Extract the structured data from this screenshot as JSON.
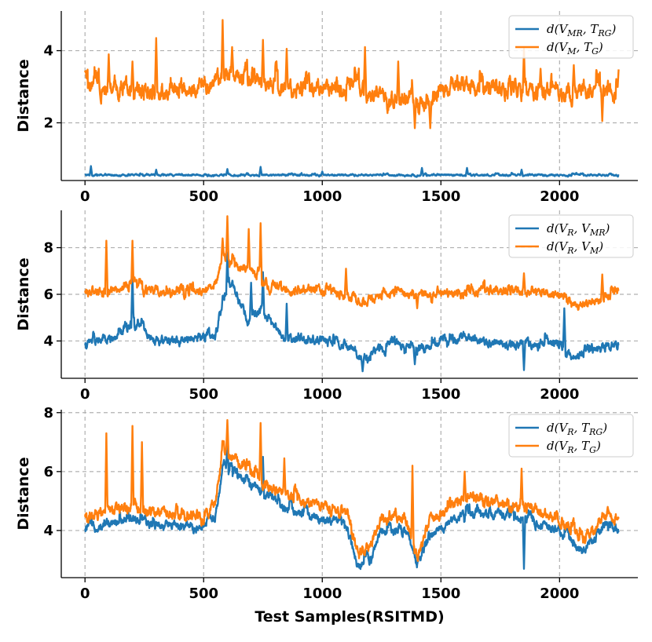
{
  "chart_data": [
    {
      "type": "line",
      "ylabel": "Distance",
      "xlabel": "",
      "xlim": [
        -100,
        2330
      ],
      "ylim": [
        0.4,
        5.1
      ],
      "xticks": [
        0,
        500,
        1000,
        1500,
        2000
      ],
      "xtick_labels": [
        "0",
        "500",
        "1000",
        "1500",
        "2000"
      ],
      "yticks": [
        2,
        4
      ],
      "ytick_labels": [
        "2",
        "4"
      ],
      "legend_position": "top-right",
      "n_points": 2250,
      "series": [
        {
          "name": "d(V_MR, T_RG)",
          "legend_main": "d(V",
          "legend_sub1": "MR",
          "legend_mid": ", T",
          "legend_sub2": "RG",
          "legend_end": ")",
          "color": "#1f77b4",
          "base": [
            [
              0,
              0.55
            ],
            [
              500,
              0.55
            ],
            [
              1000,
              0.55
            ],
            [
              1500,
              0.55
            ],
            [
              2000,
              0.55
            ],
            [
              2250,
              0.55
            ]
          ],
          "noise": 0.03,
          "spikes": [
            [
              25,
              0.8
            ],
            [
              300,
              0.7
            ],
            [
              600,
              0.72
            ],
            [
              740,
              0.78
            ],
            [
              1000,
              0.65
            ],
            [
              1420,
              0.75
            ],
            [
              1610,
              0.75
            ],
            [
              1840,
              0.7
            ]
          ]
        },
        {
          "name": "d(V_M, T_G)",
          "legend_main": "d(V",
          "legend_sub1": "M",
          "legend_mid": ", T",
          "legend_sub2": "G",
          "legend_end": ")",
          "color": "#ff7f0e",
          "base": [
            [
              0,
              3.0
            ],
            [
              200,
              2.9
            ],
            [
              400,
              2.95
            ],
            [
              550,
              3.1
            ],
            [
              620,
              3.4
            ],
            [
              700,
              3.2
            ],
            [
              800,
              3.0
            ],
            [
              1000,
              3.0
            ],
            [
              1150,
              2.95
            ],
            [
              1250,
              2.7
            ],
            [
              1400,
              2.6
            ],
            [
              1450,
              2.5
            ],
            [
              1500,
              2.9
            ],
            [
              1600,
              3.1
            ],
            [
              1800,
              2.9
            ],
            [
              2000,
              2.85
            ],
            [
              2250,
              3.0
            ]
          ],
          "noise": 0.28,
          "spikes": [
            [
              100,
              3.9
            ],
            [
              200,
              3.7
            ],
            [
              300,
              4.35
            ],
            [
              580,
              4.85
            ],
            [
              620,
              4.1
            ],
            [
              750,
              4.3
            ],
            [
              850,
              4.05
            ],
            [
              1180,
              4.1
            ],
            [
              1320,
              3.7
            ],
            [
              1390,
              1.85
            ],
            [
              1455,
              1.85
            ],
            [
              1850,
              4.05
            ],
            [
              1920,
              3.5
            ],
            [
              2060,
              3.6
            ],
            [
              2180,
              2.05
            ],
            [
              2250,
              3.6
            ]
          ]
        }
      ]
    },
    {
      "type": "line",
      "ylabel": "Distance",
      "xlabel": "",
      "xlim": [
        -100,
        2330
      ],
      "ylim": [
        2.4,
        9.6
      ],
      "xticks": [
        0,
        500,
        1000,
        1500,
        2000
      ],
      "xtick_labels": [
        "0",
        "500",
        "1000",
        "1500",
        "2000"
      ],
      "yticks": [
        4,
        6,
        8
      ],
      "ytick_labels": [
        "4",
        "6",
        "8"
      ],
      "legend_position": "top-right",
      "n_points": 2250,
      "series": [
        {
          "name": "d(V_R, V_MR)",
          "legend_main": "d(V",
          "legend_sub1": "R",
          "legend_mid": ", V",
          "legend_sub2": "MR",
          "legend_end": ")",
          "color": "#1f77b4",
          "base": [
            [
              0,
              3.9
            ],
            [
              150,
              4.2
            ],
            [
              200,
              4.8
            ],
            [
              300,
              4.0
            ],
            [
              550,
              4.2
            ],
            [
              580,
              5.8
            ],
            [
              620,
              6.5
            ],
            [
              680,
              5.0
            ],
            [
              750,
              5.3
            ],
            [
              850,
              4.0
            ],
            [
              1000,
              4.1
            ],
            [
              1100,
              3.8
            ],
            [
              1170,
              3.2
            ],
            [
              1300,
              4.0
            ],
            [
              1400,
              3.6
            ],
            [
              1600,
              4.2
            ],
            [
              1800,
              3.8
            ],
            [
              2000,
              4.0
            ],
            [
              2050,
              3.3
            ],
            [
              2150,
              3.6
            ],
            [
              2250,
              3.9
            ]
          ],
          "noise": 0.22,
          "spikes": [
            [
              200,
              6.95
            ],
            [
              600,
              7.8
            ],
            [
              700,
              6.5
            ],
            [
              750,
              6.95
            ],
            [
              850,
              5.6
            ],
            [
              1170,
              2.7
            ],
            [
              1390,
              3.0
            ],
            [
              1850,
              2.75
            ],
            [
              2020,
              5.4
            ]
          ]
        },
        {
          "name": "d(V_R, V_M)",
          "legend_main": "d(V",
          "legend_sub1": "R",
          "legend_mid": ", V",
          "legend_sub2": "M",
          "legend_end": ")",
          "color": "#ff7f0e",
          "base": [
            [
              0,
              6.1
            ],
            [
              200,
              6.3
            ],
            [
              400,
              6.0
            ],
            [
              550,
              6.3
            ],
            [
              580,
              7.7
            ],
            [
              620,
              7.3
            ],
            [
              700,
              7.0
            ],
            [
              800,
              6.2
            ],
            [
              1000,
              6.2
            ],
            [
              1100,
              6.0
            ],
            [
              1150,
              5.7
            ],
            [
              1300,
              6.0
            ],
            [
              1500,
              6.0
            ],
            [
              1700,
              6.2
            ],
            [
              1900,
              6.1
            ],
            [
              2000,
              5.9
            ],
            [
              2050,
              5.5
            ],
            [
              2150,
              5.7
            ],
            [
              2250,
              6.1
            ]
          ],
          "noise": 0.22,
          "spikes": [
            [
              90,
              8.3
            ],
            [
              200,
              8.3
            ],
            [
              580,
              8.4
            ],
            [
              600,
              9.35
            ],
            [
              690,
              8.8
            ],
            [
              740,
              9.05
            ],
            [
              1100,
              7.1
            ],
            [
              1400,
              5.4
            ],
            [
              1850,
              6.9
            ],
            [
              2180,
              6.85
            ]
          ]
        }
      ]
    },
    {
      "type": "line",
      "ylabel": "Distance",
      "xlabel": "Test Samples(RSITMD)",
      "xlim": [
        -100,
        2330
      ],
      "ylim": [
        2.4,
        8.1
      ],
      "xticks": [
        0,
        500,
        1000,
        1500,
        2000
      ],
      "xtick_labels": [
        "0",
        "500",
        "1000",
        "1500",
        "2000"
      ],
      "yticks": [
        4,
        6,
        8
      ],
      "ytick_labels": [
        "4",
        "6",
        "8"
      ],
      "legend_position": "top-right",
      "n_points": 2250,
      "series": [
        {
          "name": "d(V_R, T_RG)",
          "legend_main": "d(V",
          "legend_sub1": "R",
          "legend_mid": ", T",
          "legend_sub2": "RG",
          "legend_end": ")",
          "color": "#1f77b4",
          "base": [
            [
              0,
              4.0
            ],
            [
              100,
              4.3
            ],
            [
              200,
              4.4
            ],
            [
              300,
              4.2
            ],
            [
              500,
              4.1
            ],
            [
              550,
              4.5
            ],
            [
              580,
              6.2
            ],
            [
              650,
              5.8
            ],
            [
              750,
              5.2
            ],
            [
              900,
              4.6
            ],
            [
              1100,
              4.2
            ],
            [
              1150,
              2.9
            ],
            [
              1200,
              3.0
            ],
            [
              1250,
              4.0
            ],
            [
              1350,
              4.0
            ],
            [
              1400,
              2.8
            ],
            [
              1450,
              3.8
            ],
            [
              1600,
              4.6
            ],
            [
              1800,
              4.5
            ],
            [
              2000,
              4.0
            ],
            [
              2100,
              3.3
            ],
            [
              2200,
              4.2
            ],
            [
              2250,
              4.0
            ]
          ],
          "noise": 0.18,
          "spikes": [
            [
              600,
              7.1
            ],
            [
              750,
              6.5
            ],
            [
              1850,
              2.7
            ]
          ]
        },
        {
          "name": "d(V_R, T_G)",
          "legend_main": "d(V",
          "legend_sub1": "R",
          "legend_mid": ", T",
          "legend_sub2": "G",
          "legend_end": ")",
          "color": "#ff7f0e",
          "base": [
            [
              0,
              4.4
            ],
            [
              100,
              4.7
            ],
            [
              200,
              4.8
            ],
            [
              300,
              4.6
            ],
            [
              500,
              4.5
            ],
            [
              550,
              5.0
            ],
            [
              580,
              6.8
            ],
            [
              650,
              6.3
            ],
            [
              750,
              5.6
            ],
            [
              900,
              5.0
            ],
            [
              1100,
              4.6
            ],
            [
              1150,
              3.3
            ],
            [
              1200,
              3.4
            ],
            [
              1250,
              4.4
            ],
            [
              1350,
              4.4
            ],
            [
              1400,
              3.1
            ],
            [
              1450,
              4.3
            ],
            [
              1600,
              5.1
            ],
            [
              1800,
              4.9
            ],
            [
              2000,
              4.4
            ],
            [
              2100,
              3.7
            ],
            [
              2200,
              4.6
            ],
            [
              2250,
              4.4
            ]
          ],
          "noise": 0.22,
          "spikes": [
            [
              90,
              7.3
            ],
            [
              200,
              7.55
            ],
            [
              240,
              7.0
            ],
            [
              600,
              7.75
            ],
            [
              740,
              7.65
            ],
            [
              840,
              6.45
            ],
            [
              1380,
              6.2
            ],
            [
              1600,
              6.0
            ],
            [
              1840,
              6.1
            ]
          ]
        }
      ]
    }
  ]
}
